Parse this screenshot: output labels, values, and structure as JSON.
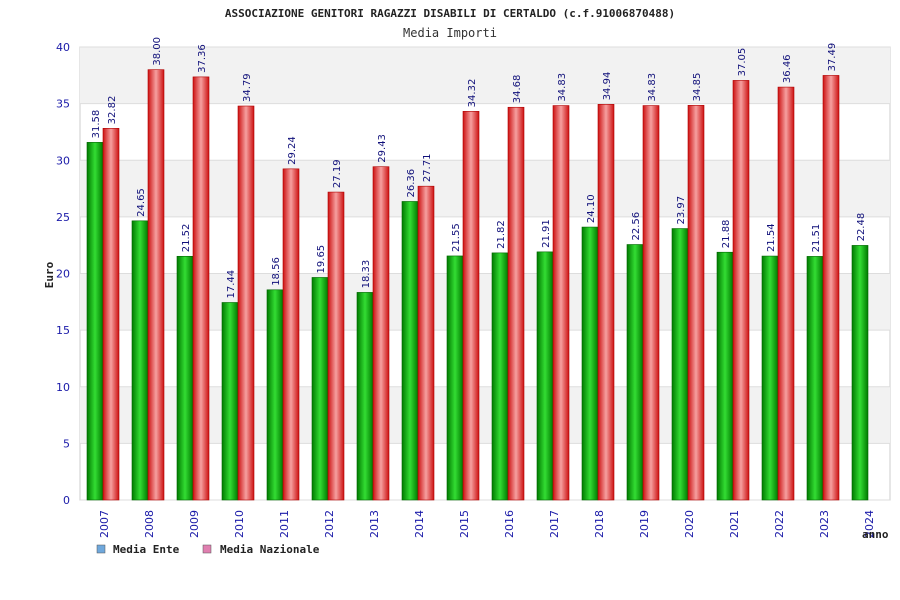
{
  "chart_data": {
    "type": "bar",
    "title": "ASSOCIAZIONE GENITORI RAGAZZI DISABILI DI CERTALDO (c.f.91006870488)",
    "subtitle": "Media Importi",
    "xlabel": "anno",
    "ylabel": "Euro",
    "ylim": [
      0,
      40
    ],
    "yticks": [
      0,
      5,
      10,
      15,
      20,
      25,
      30,
      35,
      40
    ],
    "grid": true,
    "legend_position": "bottom-left",
    "categories": [
      "2007",
      "2008",
      "2009",
      "2010",
      "2011",
      "2012",
      "2013",
      "2014",
      "2015",
      "2016",
      "2017",
      "2018",
      "2019",
      "2020",
      "2021",
      "2022",
      "2023",
      "2024"
    ],
    "series": [
      {
        "name": "Media Ente",
        "color": "#00aa00",
        "legend_color": "#6fa8dc",
        "values": [
          31.58,
          24.65,
          21.52,
          17.44,
          18.56,
          19.65,
          18.33,
          26.36,
          21.55,
          21.82,
          21.91,
          24.1,
          22.56,
          23.97,
          21.88,
          21.54,
          21.51,
          22.48
        ],
        "labels": [
          "31.58",
          "24.65",
          "21.52",
          "17.44",
          "18.56",
          "19.65",
          "18.33",
          "26.36",
          "21.55",
          "21.82",
          "21.91",
          "24.10",
          "22.56",
          "23.97",
          "21.88",
          "21.54",
          "21.51",
          "22.48"
        ]
      },
      {
        "name": "Media Nazionale",
        "color": "#ee2222",
        "legend_color": "#e07fb0",
        "values": [
          32.82,
          38.0,
          37.36,
          34.79,
          29.24,
          27.19,
          29.43,
          27.71,
          34.32,
          34.68,
          34.83,
          34.94,
          34.83,
          34.85,
          37.05,
          36.46,
          37.49,
          null
        ],
        "labels": [
          "32.82",
          "38.00",
          "37.36",
          "34.79",
          "29.24",
          "27.19",
          "29.43",
          "27.71",
          "34.32",
          "34.68",
          "34.83",
          "34.94",
          "34.83",
          "34.85",
          "37.05",
          "36.46",
          "37.49",
          ""
        ]
      }
    ]
  }
}
